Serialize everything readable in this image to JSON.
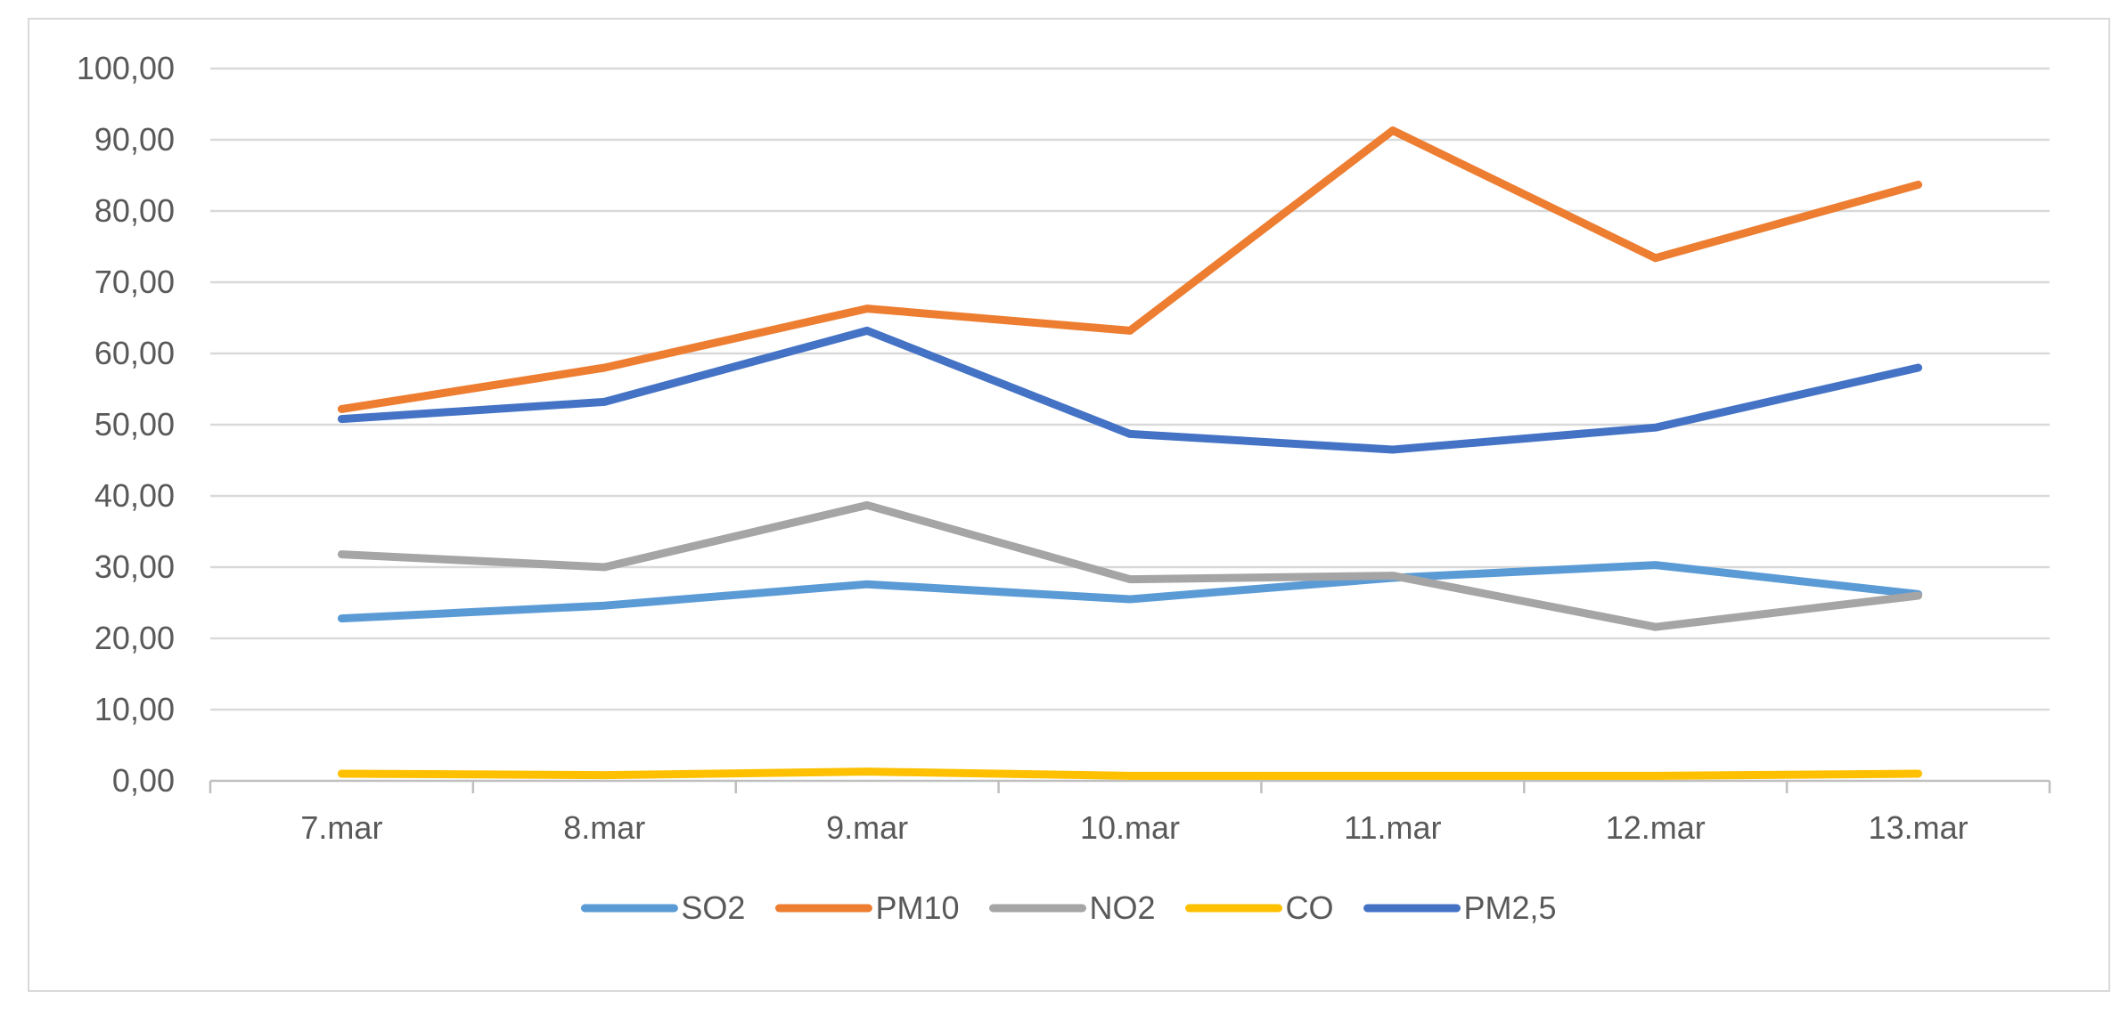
{
  "chart_data": {
    "type": "line",
    "title": "",
    "xlabel": "",
    "ylabel": "",
    "categories": [
      "7.mar",
      "8.mar",
      "9.mar",
      "10.mar",
      "11.mar",
      "12.mar",
      "13.mar"
    ],
    "ylim": [
      0,
      100
    ],
    "yticks": [
      "0,00",
      "10,00",
      "20,00",
      "30,00",
      "40,00",
      "50,00",
      "60,00",
      "70,00",
      "80,00",
      "90,00",
      "100,00"
    ],
    "grid": true,
    "legend_position": "bottom",
    "series": [
      {
        "name": "SO2",
        "color": "#5b9bd5",
        "values": [
          22.8,
          24.6,
          27.6,
          25.5,
          28.5,
          30.3,
          26.2
        ]
      },
      {
        "name": "PM10",
        "color": "#ed7d31",
        "values": [
          52.2,
          58.0,
          66.3,
          63.2,
          91.3,
          73.4,
          83.7
        ]
      },
      {
        "name": "NO2",
        "color": "#a5a5a5",
        "values": [
          31.8,
          30.0,
          38.7,
          28.3,
          28.8,
          21.6,
          26.0
        ]
      },
      {
        "name": "CO",
        "color": "#ffc000",
        "values": [
          1.0,
          0.8,
          1.3,
          0.7,
          0.7,
          0.7,
          1.0
        ]
      },
      {
        "name": "PM2,5",
        "color": "#4472c4",
        "values": [
          50.8,
          53.2,
          63.2,
          48.7,
          46.5,
          49.6,
          58.0
        ]
      }
    ]
  }
}
